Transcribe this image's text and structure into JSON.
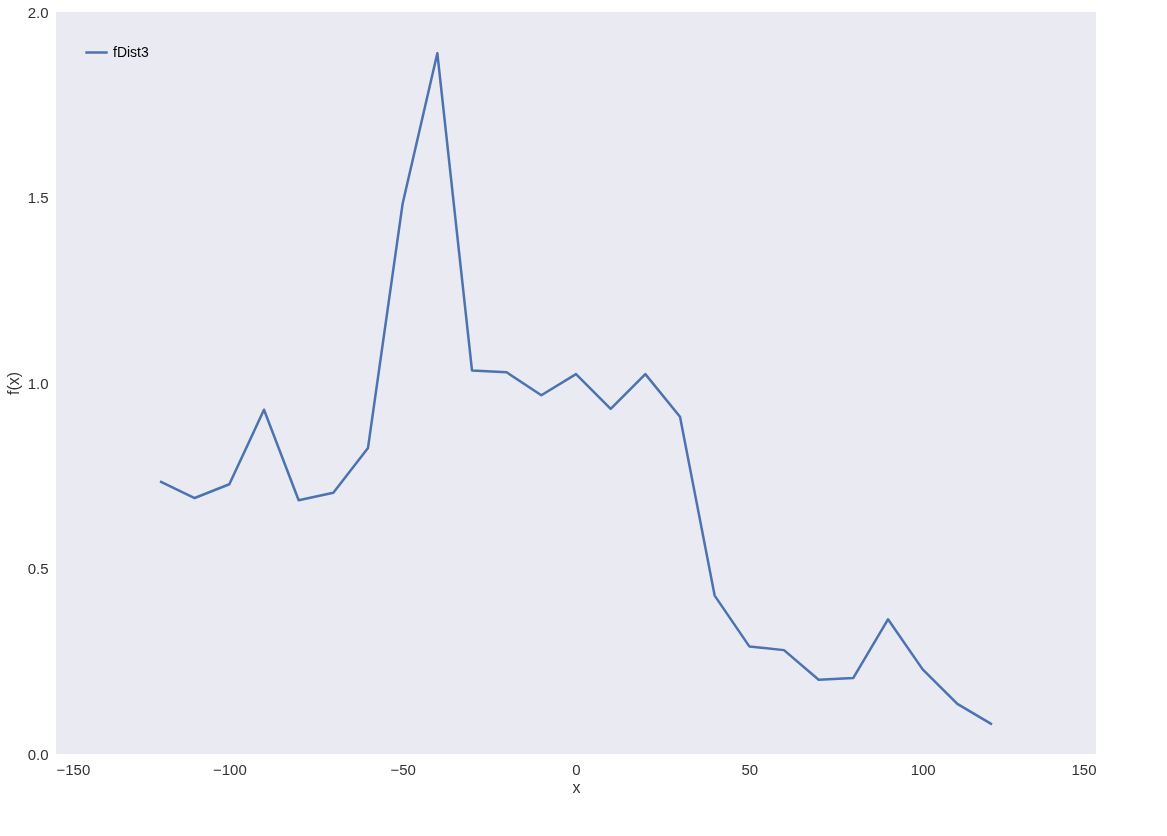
{
  "chart_data": {
    "type": "line",
    "xlabel": "x",
    "ylabel": "f(x)",
    "x": [
      -120,
      -110,
      -100,
      -90,
      -80,
      -70,
      -60,
      -50,
      -40,
      -30,
      -20,
      -10,
      0,
      10,
      20,
      30,
      40,
      50,
      60,
      70,
      80,
      90,
      100,
      110,
      120
    ],
    "series": [
      {
        "name": "fDist3",
        "color": "#4c72b0",
        "values": [
          0.735,
          0.69,
          0.727,
          0.928,
          0.684,
          0.704,
          0.825,
          1.484,
          1.889,
          1.034,
          1.029,
          0.967,
          1.024,
          0.93,
          1.024,
          0.909,
          0.427,
          0.29,
          0.28,
          0.2,
          0.205,
          0.363,
          0.228,
          0.135,
          0.08
        ]
      }
    ],
    "xlim": [
      -150,
      150
    ],
    "xticks": [
      {
        "value": -150,
        "label": "−150"
      },
      {
        "value": -100,
        "label": "−100"
      },
      {
        "value": -50,
        "label": "−50"
      },
      0,
      50,
      100,
      150
    ],
    "ylim": [
      0,
      2
    ],
    "yticks": [
      {
        "value": 0,
        "label": "0.0"
      },
      {
        "value": 0.5,
        "label": "0.5"
      },
      {
        "value": 1,
        "label": "1.0"
      },
      {
        "value": 1.5,
        "label": "1.5"
      },
      {
        "value": 2,
        "label": "2.0"
      }
    ],
    "grid": false,
    "legend": "top left",
    "line_style": "solid",
    "marker": "none"
  }
}
